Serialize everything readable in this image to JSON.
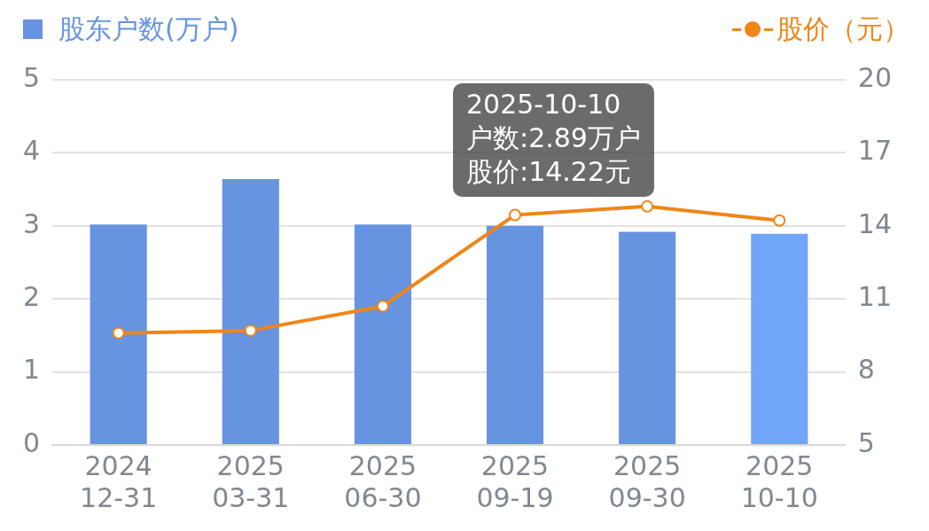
{
  "chart_data": {
    "type": "bar",
    "categories": [
      "2024 12-31",
      "2025 03-31",
      "2025 06-30",
      "2025 09-19",
      "2025 09-30",
      "2025 10-10"
    ],
    "series": [
      {
        "name": "股东户数(万户)",
        "colors": [
          "#6694e0",
          "#6694e0",
          "#6694e0",
          "#6694e0",
          "#6694e0",
          "#70a5f7"
        ],
        "values": [
          3.02,
          3.64,
          3.02,
          3.0,
          2.92,
          2.89
        ]
      },
      {
        "name": "股价（元）",
        "type": "line",
        "axis": "y2",
        "color": "#f08518",
        "values": [
          9.6,
          9.7,
          10.7,
          14.45,
          14.8,
          14.22
        ]
      }
    ],
    "ylim": [
      0,
      5
    ],
    "yticks": [
      0,
      1,
      2,
      3,
      4,
      5
    ],
    "y2lim": [
      5,
      20
    ],
    "y2ticks": [
      5,
      8,
      11,
      14,
      17,
      20
    ],
    "grid": "y",
    "legend": "top",
    "marker": "circle",
    "annotations": [
      "2025-10-10",
      "户数:2.89万户",
      "股价:14.22元"
    ]
  }
}
